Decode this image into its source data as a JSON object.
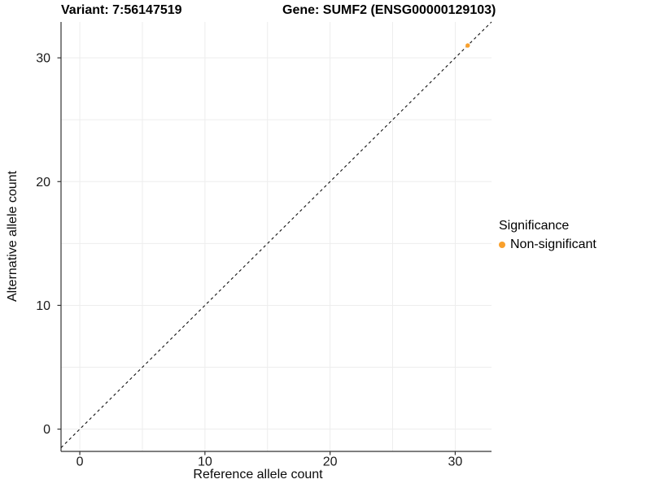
{
  "chart_data": {
    "type": "scatter",
    "titles": {
      "left": "Variant: 7:56147519",
      "right": "Gene: SUMF2 (ENSG00000129103)"
    },
    "xlabel": "Reference allele count",
    "ylabel": "Alternative allele count",
    "x_ticks": [
      0,
      10,
      20,
      30
    ],
    "y_ticks": [
      0,
      10,
      20,
      30
    ],
    "grid_step": 5,
    "xlim": [
      -1.5,
      32.9
    ],
    "ylim": [
      -1.8,
      32.9
    ],
    "grid": true,
    "points": [
      {
        "x": 31,
        "y": 31,
        "series": "Non-significant"
      }
    ],
    "identity_line": {
      "style": "dashed",
      "slope": 1,
      "intercept": 0
    },
    "legend": {
      "title": "Significance",
      "position": "right",
      "entries": [
        {
          "label": "Non-significant",
          "color": "#F9A02C"
        }
      ]
    },
    "colors": {
      "point": "#F9A02C",
      "grid": "#EDEDED",
      "axis": "#333333",
      "axis_text": "#1A1A1A",
      "identity_line": "#111111"
    }
  }
}
